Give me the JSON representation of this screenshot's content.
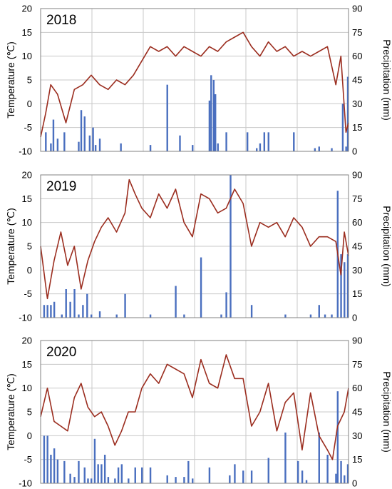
{
  "colors": {
    "temperature": "#9b2d1f",
    "precipitation": "#4a6fbf",
    "grid": "#c8c8c8",
    "frame": "#808080"
  },
  "chart_data": [
    {
      "type": "line+bar",
      "panel_label": "2018",
      "ylabel_left": "Temperature  (℃)",
      "ylabel_right": "Precipitation (mm)",
      "ylim_left": [
        -10,
        20
      ],
      "ylim_right": [
        0,
        90
      ],
      "yticks_left": [
        "20",
        "15",
        "10",
        "5",
        "0",
        "-5",
        "-10"
      ],
      "yticks_right": [
        "90",
        "75",
        "60",
        "45",
        "30",
        "15",
        "0"
      ],
      "grid": true,
      "series": [
        {
          "axis": "left",
          "kind": "line",
          "x": [
            0,
            6,
            12,
            20,
            30,
            40,
            50,
            60,
            70,
            80,
            90,
            100,
            110,
            120,
            130,
            140,
            150,
            160,
            170,
            180,
            190,
            200,
            210,
            220,
            230,
            240,
            250,
            260,
            270,
            280,
            290,
            300,
            310,
            320,
            330,
            340,
            350,
            356,
            362,
            365
          ],
          "values": [
            -7,
            -2,
            4,
            2,
            -4,
            3,
            4,
            6,
            4,
            3,
            5,
            4,
            6,
            9,
            12,
            11,
            12,
            10,
            12,
            11,
            10,
            12,
            11,
            13,
            14,
            15,
            12,
            10,
            13,
            11,
            12,
            10,
            11,
            10,
            11,
            12,
            4,
            10,
            -6,
            -4
          ]
        },
        {
          "axis": "right",
          "kind": "bar",
          "x": [
            6,
            12,
            15,
            20,
            28,
            45,
            48,
            52,
            58,
            62,
            65,
            70,
            95,
            130,
            150,
            165,
            180,
            200,
            202,
            205,
            207,
            210,
            220,
            245,
            256,
            260,
            265,
            270,
            300,
            325,
            330,
            345,
            358,
            362,
            364
          ],
          "values": [
            12,
            5,
            20,
            8,
            12,
            6,
            26,
            22,
            10,
            15,
            4,
            8,
            5,
            4,
            42,
            10,
            4,
            32,
            48,
            45,
            36,
            5,
            12,
            12,
            2,
            5,
            12,
            12,
            12,
            2,
            3,
            2,
            30,
            3,
            47
          ]
        }
      ]
    },
    {
      "type": "line+bar",
      "panel_label": "2019",
      "ylabel_left": "Temperature  (℃)",
      "ylabel_right": "Precipitation (mm)",
      "ylim_left": [
        -10,
        20
      ],
      "ylim_right": [
        0,
        90
      ],
      "yticks_left": [
        "20",
        "15",
        "10",
        "5",
        "0",
        "-5",
        "-10"
      ],
      "yticks_right": [
        "90",
        "75",
        "60",
        "45",
        "30",
        "15",
        "0"
      ],
      "grid": true,
      "series": [
        {
          "axis": "left",
          "kind": "line",
          "x": [
            0,
            8,
            16,
            24,
            32,
            40,
            48,
            56,
            64,
            72,
            80,
            90,
            100,
            105,
            112,
            120,
            130,
            140,
            150,
            160,
            170,
            180,
            190,
            200,
            210,
            220,
            230,
            240,
            250,
            260,
            270,
            280,
            290,
            300,
            310,
            320,
            330,
            340,
            350,
            356,
            360,
            365
          ],
          "values": [
            5,
            -6,
            2,
            8,
            1,
            5,
            -4,
            2,
            6,
            9,
            11,
            8,
            12,
            19,
            16,
            13,
            11,
            16,
            13,
            17,
            10,
            7,
            16,
            15,
            12,
            13,
            17,
            14,
            5,
            10,
            9,
            10,
            7,
            11,
            9,
            5,
            7,
            7,
            6,
            -1,
            8,
            3
          ]
        },
        {
          "axis": "right",
          "kind": "bar",
          "x": [
            4,
            8,
            12,
            16,
            25,
            30,
            35,
            40,
            45,
            50,
            55,
            60,
            70,
            90,
            100,
            130,
            160,
            170,
            190,
            214,
            220,
            225,
            250,
            290,
            320,
            330,
            337,
            345,
            352,
            356,
            360,
            364
          ],
          "values": [
            8,
            8,
            8,
            10,
            2,
            18,
            10,
            18,
            2,
            8,
            15,
            2,
            4,
            2,
            15,
            2,
            20,
            2,
            38,
            2,
            16,
            90,
            8,
            2,
            2,
            8,
            2,
            2,
            80,
            40,
            35,
            40
          ]
        }
      ]
    },
    {
      "type": "line+bar",
      "panel_label": "2020",
      "ylabel_left": "Temperature  (℃)",
      "ylabel_right": "Precipitation (mm)",
      "ylim_left": [
        -10,
        20
      ],
      "ylim_right": [
        0,
        90
      ],
      "yticks_left": [
        "20",
        "15",
        "10",
        "5",
        "0",
        "-5",
        "-10"
      ],
      "yticks_right": [
        "90",
        "75",
        "60",
        "45",
        "30",
        "15",
        "0"
      ],
      "grid": true,
      "series": [
        {
          "axis": "left",
          "kind": "line",
          "x": [
            0,
            8,
            16,
            24,
            32,
            40,
            48,
            56,
            64,
            72,
            80,
            88,
            96,
            104,
            112,
            120,
            130,
            140,
            150,
            160,
            170,
            180,
            190,
            200,
            210,
            220,
            230,
            240,
            250,
            260,
            270,
            280,
            290,
            300,
            310,
            320,
            330,
            340,
            346,
            352,
            360,
            365
          ],
          "values": [
            4,
            10,
            3,
            2,
            1,
            8,
            11,
            6,
            4,
            5,
            2,
            -2,
            1,
            5,
            5,
            10,
            13,
            11,
            15,
            14,
            13,
            8,
            16,
            11,
            10,
            17,
            12,
            12,
            2,
            5,
            11,
            1,
            7,
            9,
            -3,
            9,
            0,
            -3,
            -5,
            2,
            5,
            10
          ]
        },
        {
          "axis": "right",
          "kind": "bar",
          "x": [
            4,
            8,
            12,
            16,
            20,
            28,
            35,
            40,
            45,
            52,
            56,
            60,
            64,
            68,
            72,
            76,
            80,
            88,
            92,
            96,
            104,
            112,
            120,
            130,
            150,
            160,
            170,
            175,
            180,
            200,
            224,
            230,
            240,
            250,
            270,
            290,
            305,
            310,
            315,
            330,
            340,
            350,
            352,
            356,
            360,
            364
          ],
          "values": [
            30,
            30,
            18,
            22,
            15,
            14,
            6,
            4,
            14,
            10,
            3,
            3,
            28,
            12,
            12,
            18,
            4,
            3,
            10,
            12,
            3,
            10,
            10,
            10,
            5,
            4,
            4,
            14,
            3,
            10,
            5,
            12,
            8,
            8,
            16,
            32,
            14,
            8,
            2,
            32,
            18,
            6,
            58,
            14,
            5,
            12
          ]
        }
      ]
    }
  ]
}
